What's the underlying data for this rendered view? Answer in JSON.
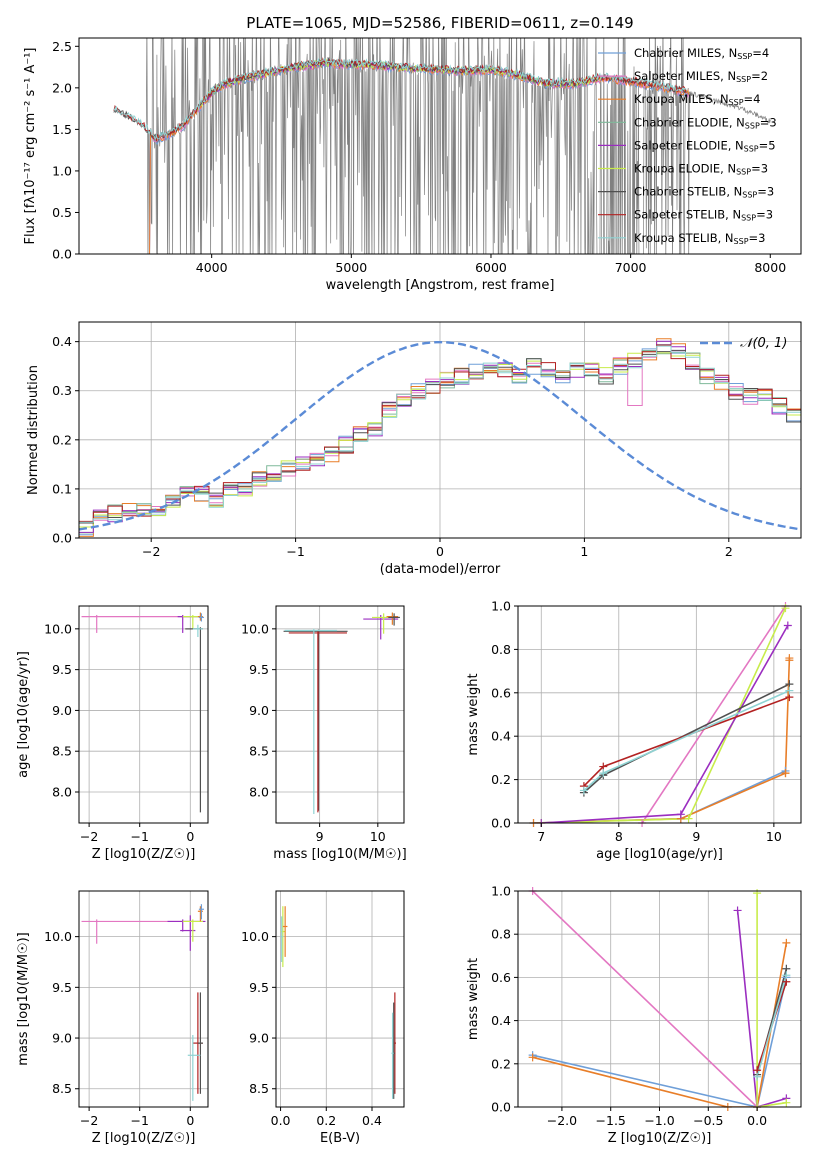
{
  "title": "PLATE=1065, MJD=52586, FIBERID=0611, z=0.149",
  "colors": {
    "chabrier_miles": "#6f9fd8",
    "salpeter_miles": "#e377c2",
    "kroupa_miles": "#e87e29",
    "chabrier_elodie": "#7fb99a",
    "salpeter_elodie": "#9b2ec0",
    "kroupa_elodie": "#c8ec4b",
    "chabrier_stelib": "#505050",
    "salpeter_stelib": "#b22222",
    "kroupa_stelib": "#8fd3d3",
    "data": "#808080",
    "gauss": "#5b8bd6"
  },
  "chart_data": [
    {
      "id": "spectrum",
      "type": "line",
      "title": "PLATE=1065, MJD=52586, FIBERID=0611, z=0.149",
      "xlabel": "wavelength [Angstrom, rest frame]",
      "ylabel": "Flux [fλ10⁻¹⁷ erg cm⁻² s⁻¹ A⁻¹]",
      "xlim": [
        3050,
        8220
      ],
      "ylim": [
        0,
        2.6
      ],
      "xticks": [
        "4000",
        "5000",
        "6000",
        "7000",
        "8000"
      ],
      "yticks": [
        "0.0",
        "0.5",
        "1.0",
        "1.5",
        "2.0",
        "2.5"
      ],
      "legend_position": "top-right",
      "legend": [
        {
          "label": "Chabrier MILES, N",
          "sub": "SSP",
          "val": "=4",
          "color": "#6f9fd8"
        },
        {
          "label": "Salpeter MILES, N",
          "sub": "SSP",
          "val": "=2",
          "color": "#e377c2"
        },
        {
          "label": "Kroupa MILES, N",
          "sub": "SSP",
          "val": "=4",
          "color": "#e87e29"
        },
        {
          "label": "Chabrier ELODIE, N",
          "sub": "SSP",
          "val": "=3",
          "color": "#7fb99a"
        },
        {
          "label": "Salpeter ELODIE, N",
          "sub": "SSP",
          "val": "=5",
          "color": "#9b2ec0"
        },
        {
          "label": "Kroupa ELODIE, N",
          "sub": "SSP",
          "val": "=3",
          "color": "#c8ec4b"
        },
        {
          "label": "Chabrier STELIB, N",
          "sub": "SSP",
          "val": "=3",
          "color": "#505050"
        },
        {
          "label": "Salpeter STELIB, N",
          "sub": "SSP",
          "val": "=3",
          "color": "#b22222"
        },
        {
          "label": "Kroupa STELIB, N",
          "sub": "SSP",
          "val": "=3",
          "color": "#8fd3d3"
        }
      ],
      "continuum": [
        [
          3300,
          1.73
        ],
        [
          3400,
          1.65
        ],
        [
          3500,
          1.55
        ],
        [
          3600,
          1.38
        ],
        [
          3700,
          1.45
        ],
        [
          3800,
          1.55
        ],
        [
          3900,
          1.75
        ],
        [
          4000,
          1.95
        ],
        [
          4100,
          2.05
        ],
        [
          4200,
          2.1
        ],
        [
          4400,
          2.18
        ],
        [
          4600,
          2.25
        ],
        [
          4800,
          2.3
        ],
        [
          5000,
          2.28
        ],
        [
          5200,
          2.27
        ],
        [
          5400,
          2.24
        ],
        [
          5600,
          2.22
        ],
        [
          5800,
          2.2
        ],
        [
          6000,
          2.22
        ],
        [
          6200,
          2.15
        ],
        [
          6400,
          2.05
        ],
        [
          6600,
          2.05
        ],
        [
          6800,
          2.12
        ],
        [
          7000,
          2.08
        ],
        [
          7200,
          2.02
        ],
        [
          7400,
          1.95
        ],
        [
          7600,
          1.85
        ],
        [
          7800,
          1.75
        ],
        [
          8000,
          1.6
        ]
      ]
    },
    {
      "id": "residuals",
      "type": "histogram",
      "xlabel": "(data-model)/error",
      "ylabel": "Normed distribution",
      "xlim": [
        -2.5,
        2.5
      ],
      "ylim": [
        0,
        0.44
      ],
      "xticks": [
        "−2",
        "−1",
        "0",
        "1",
        "2"
      ],
      "yticks": [
        "0.0",
        "0.1",
        "0.2",
        "0.3",
        "0.4"
      ],
      "grid": true,
      "legend_position": "top-right",
      "gauss_label": "𝒩(0, 1)",
      "bin_width": 0.1,
      "bins_start": -2.5,
      "values": [
        0.02,
        0.04,
        0.05,
        0.06,
        0.06,
        0.05,
        0.07,
        0.09,
        0.09,
        0.08,
        0.1,
        0.1,
        0.12,
        0.13,
        0.14,
        0.15,
        0.16,
        0.17,
        0.19,
        0.21,
        0.22,
        0.26,
        0.28,
        0.3,
        0.31,
        0.32,
        0.33,
        0.34,
        0.35,
        0.34,
        0.33,
        0.35,
        0.34,
        0.33,
        0.34,
        0.34,
        0.33,
        0.35,
        0.36,
        0.38,
        0.39,
        0.38,
        0.36,
        0.33,
        0.32,
        0.3,
        0.29,
        0.29,
        0.27,
        0.25,
        0.24,
        0.23,
        0.21,
        0.19,
        0.18,
        0.16,
        0.15,
        0.13,
        0.12,
        0.11,
        0.1,
        0.09,
        0.08,
        0.08,
        0.07,
        0.06,
        0.05,
        0.05,
        0.05,
        0.04
      ]
    },
    {
      "id": "age_Z",
      "type": "errorbar",
      "xlabel": "Z [log10(Z/Z☉)]",
      "ylabel": "age [log10(age/yr)]",
      "xlim": [
        -2.2,
        0.35
      ],
      "ylim": [
        7.62,
        10.28
      ],
      "xticks": [
        "−2",
        "−1",
        "0"
      ],
      "yticks": [
        "8.0",
        "8.5",
        "9.0",
        "9.5",
        "10.0"
      ]
    },
    {
      "id": "age_mass",
      "type": "errorbar",
      "xlabel": "mass [log10(M/M☉)]",
      "xlim": [
        8.25,
        10.45
      ],
      "ylim": [
        7.62,
        10.28
      ],
      "xticks": [
        "9",
        "10"
      ],
      "yticks": [
        "8.0",
        "8.5",
        "9.0",
        "9.5",
        "10.0"
      ]
    },
    {
      "id": "massweight_age",
      "type": "line",
      "xlabel": "age [log10(age/yr)]",
      "ylabel": "mass weight",
      "xlim": [
        6.7,
        10.35
      ],
      "ylim": [
        0,
        1
      ],
      "xticks": [
        "7",
        "8",
        "9",
        "10"
      ],
      "yticks": [
        "0.0",
        "0.2",
        "0.4",
        "0.6",
        "0.8",
        "1.0"
      ],
      "series": [
        {
          "key": "chabrier_miles",
          "color": "#6f9fd8",
          "x": [
            6.9,
            8.8,
            10.15
          ],
          "y": [
            0.0,
            0.02,
            0.24
          ]
        },
        {
          "key": "kroupa_miles",
          "color": "#e87e29",
          "x": [
            6.9,
            8.8,
            10.15
          ],
          "y": [
            0.0,
            0.02,
            0.23
          ]
        },
        {
          "key": "salpeter_miles",
          "color": "#e377c2",
          "x": [
            8.3,
            10.15
          ],
          "y": [
            0.0,
            1.0
          ]
        },
        {
          "key": "kroupa_elodie",
          "color": "#c8ec4b",
          "x": [
            7.0,
            8.9,
            10.15
          ],
          "y": [
            0.0,
            0.02,
            0.99
          ]
        },
        {
          "key": "salpeter_elodie",
          "color": "#9b2ec0",
          "x": [
            7.0,
            8.8,
            10.18
          ],
          "y": [
            0.0,
            0.04,
            0.91
          ]
        },
        {
          "key": "chabrier_stelib",
          "color": "#505050",
          "x": [
            7.55,
            7.8,
            10.2
          ],
          "y": [
            0.14,
            0.22,
            0.64
          ]
        },
        {
          "key": "salpeter_stelib",
          "color": "#b22222",
          "x": [
            7.55,
            7.8,
            10.2
          ],
          "y": [
            0.17,
            0.26,
            0.58
          ]
        },
        {
          "key": "kroupa_stelib",
          "color": "#8fd3d3",
          "x": [
            7.55,
            7.8,
            10.2
          ],
          "y": [
            0.15,
            0.23,
            0.61
          ]
        },
        {
          "key": "kroupa_miles",
          "color": "#e87e29",
          "x": [
            10.15,
            10.2,
            10.2
          ],
          "y": [
            0.23,
            0.76,
            0.75
          ]
        }
      ]
    },
    {
      "id": "mass_Z",
      "type": "errorbar",
      "xlabel": "Z [log10(Z/Z☉)]",
      "ylabel": "mass [log10(M/M☉)]",
      "xlim": [
        -2.2,
        0.35
      ],
      "ylim": [
        8.32,
        10.45
      ],
      "xticks": [
        "−2",
        "−1",
        "0"
      ],
      "yticks": [
        "8.5",
        "9.0",
        "9.5",
        "10.0"
      ]
    },
    {
      "id": "mass_ebv",
      "type": "errorbar",
      "xlabel": "E(B-V)",
      "xlim": [
        -0.02,
        0.54
      ],
      "ylim": [
        8.32,
        10.45
      ],
      "xticks": [
        "0.0",
        "0.2",
        "0.4"
      ],
      "yticks": [
        "8.5",
        "9.0",
        "9.5",
        "10.0"
      ]
    },
    {
      "id": "massweight_Z",
      "type": "line",
      "xlabel": "Z [log10(Z/Z☉)]",
      "ylabel": "mass weight",
      "xlim": [
        -2.45,
        0.45
      ],
      "ylim": [
        0,
        1
      ],
      "xticks": [
        "−2.0",
        "−1.5",
        "−1.0",
        "−0.5",
        "0.0"
      ],
      "yticks": [
        "0.0",
        "0.2",
        "0.4",
        "0.6",
        "0.8",
        "1.0"
      ],
      "series": [
        {
          "key": "chabrier_miles",
          "color": "#6f9fd8",
          "x": [
            -2.3,
            0.0,
            0.3
          ],
          "y": [
            0.24,
            0.0,
            0.6
          ]
        },
        {
          "key": "kroupa_miles",
          "color": "#e87e29",
          "x": [
            -2.3,
            -0.3,
            0.0,
            0.3
          ],
          "y": [
            0.23,
            0.0,
            0.0,
            0.76
          ]
        },
        {
          "key": "salpeter_miles",
          "color": "#e377c2",
          "x": [
            -2.3,
            0.0
          ],
          "y": [
            1.0,
            0.0
          ]
        },
        {
          "key": "salpeter_elodie",
          "color": "#9b2ec0",
          "x": [
            -0.2,
            0.0,
            0.3
          ],
          "y": [
            0.91,
            0.0,
            0.04
          ]
        },
        {
          "key": "kroupa_elodie",
          "color": "#c8ec4b",
          "x": [
            0.0,
            0.0,
            0.3
          ],
          "y": [
            0.99,
            0.0,
            0.02
          ]
        },
        {
          "key": "chabrier_stelib",
          "color": "#505050",
          "x": [
            0.0,
            0.3
          ],
          "y": [
            0.15,
            0.64
          ]
        },
        {
          "key": "salpeter_stelib",
          "color": "#b22222",
          "x": [
            0.0,
            0.3
          ],
          "y": [
            0.17,
            0.58
          ]
        },
        {
          "key": "kroupa_stelib",
          "color": "#8fd3d3",
          "x": [
            0.0,
            0.3
          ],
          "y": [
            0.14,
            0.61
          ]
        }
      ]
    }
  ]
}
